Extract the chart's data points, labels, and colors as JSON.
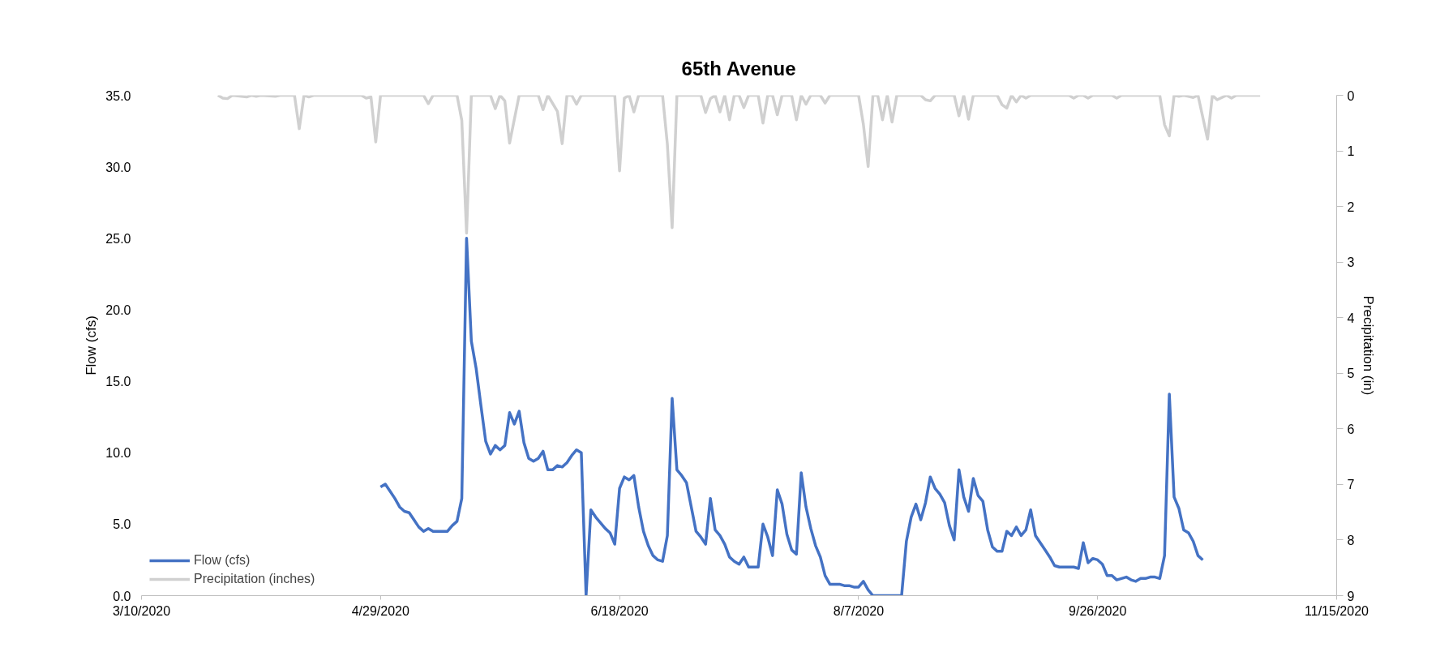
{
  "chart_data": {
    "type": "line",
    "title": "65th Avenue",
    "ylabel": "Flow (cfs)",
    "y2label": "Precipitation (in)",
    "xlim": [
      "2020-03-10",
      "2020-11-15"
    ],
    "xticks": [
      {
        "value": "2020-03-10",
        "label": "3/10/2020"
      },
      {
        "value": "2020-04-29",
        "label": "4/29/2020"
      },
      {
        "value": "2020-06-18",
        "label": "6/18/2020"
      },
      {
        "value": "2020-08-07",
        "label": "8/7/2020"
      },
      {
        "value": "2020-09-26",
        "label": "9/26/2020"
      },
      {
        "value": "2020-11-15",
        "label": "11/15/2020"
      }
    ],
    "ylim": [
      0,
      35
    ],
    "yticks": [
      {
        "value": 0,
        "label": "0.0"
      },
      {
        "value": 5,
        "label": "5.0"
      },
      {
        "value": 10,
        "label": "10.0"
      },
      {
        "value": 15,
        "label": "15.0"
      },
      {
        "value": 20,
        "label": "20.0"
      },
      {
        "value": 25,
        "label": "25.0"
      },
      {
        "value": 30,
        "label": "30.0"
      },
      {
        "value": 35,
        "label": "35.0"
      }
    ],
    "y2lim": [
      9,
      0
    ],
    "y2ticks": [
      0,
      1,
      2,
      3,
      4,
      5,
      6,
      7,
      8,
      9
    ],
    "legend": "bottom left",
    "series": [
      {
        "name": "Flow (cfs)",
        "color": "#4472c4",
        "x": [
          "2020-04-29",
          "2020-04-30",
          "2020-05-01",
          "2020-05-02",
          "2020-05-03",
          "2020-05-04",
          "2020-05-05",
          "2020-05-06",
          "2020-05-07",
          "2020-05-08",
          "2020-05-09",
          "2020-05-10",
          "2020-05-11",
          "2020-05-12",
          "2020-05-13",
          "2020-05-14",
          "2020-05-15",
          "2020-05-16",
          "2020-05-17",
          "2020-05-18",
          "2020-05-19",
          "2020-05-20",
          "2020-05-21",
          "2020-05-22",
          "2020-05-23",
          "2020-05-24",
          "2020-05-25",
          "2020-05-26",
          "2020-05-27",
          "2020-05-28",
          "2020-05-29",
          "2020-05-30",
          "2020-05-31",
          "2020-06-01",
          "2020-06-02",
          "2020-06-03",
          "2020-06-04",
          "2020-06-05",
          "2020-06-06",
          "2020-06-07",
          "2020-06-08",
          "2020-06-09",
          "2020-06-10",
          "2020-06-11",
          "2020-06-12",
          "2020-06-13",
          "2020-06-14",
          "2020-06-15",
          "2020-06-16",
          "2020-06-17",
          "2020-06-18",
          "2020-06-19",
          "2020-06-20",
          "2020-06-21",
          "2020-06-22",
          "2020-06-23",
          "2020-06-24",
          "2020-06-25",
          "2020-06-26",
          "2020-06-27",
          "2020-06-28",
          "2020-06-29",
          "2020-06-30",
          "2020-07-01",
          "2020-07-02",
          "2020-07-03",
          "2020-07-04",
          "2020-07-05",
          "2020-07-06",
          "2020-07-07",
          "2020-07-08",
          "2020-07-09",
          "2020-07-10",
          "2020-07-11",
          "2020-07-12",
          "2020-07-13",
          "2020-07-14",
          "2020-07-15",
          "2020-07-16",
          "2020-07-17",
          "2020-07-18",
          "2020-07-19",
          "2020-07-20",
          "2020-07-21",
          "2020-07-22",
          "2020-07-23",
          "2020-07-24",
          "2020-07-25",
          "2020-07-26",
          "2020-07-27",
          "2020-07-28",
          "2020-07-29",
          "2020-07-30",
          "2020-07-31",
          "2020-08-01",
          "2020-08-02",
          "2020-08-03",
          "2020-08-04",
          "2020-08-05",
          "2020-08-06",
          "2020-08-07",
          "2020-08-08",
          "2020-08-09",
          "2020-08-10",
          "2020-08-11",
          "2020-08-12",
          "2020-08-13",
          "2020-08-14",
          "2020-08-15",
          "2020-08-16",
          "2020-08-17",
          "2020-08-18",
          "2020-08-19",
          "2020-08-20",
          "2020-08-21",
          "2020-08-22",
          "2020-08-23",
          "2020-08-24",
          "2020-08-25",
          "2020-08-26",
          "2020-08-27",
          "2020-08-28",
          "2020-08-29",
          "2020-08-30",
          "2020-08-31",
          "2020-09-01",
          "2020-09-02",
          "2020-09-03",
          "2020-09-04",
          "2020-09-05",
          "2020-09-06",
          "2020-09-07",
          "2020-09-08",
          "2020-09-09",
          "2020-09-10",
          "2020-09-11",
          "2020-09-12",
          "2020-09-13",
          "2020-09-14",
          "2020-09-15",
          "2020-09-16",
          "2020-09-17",
          "2020-09-18",
          "2020-09-19",
          "2020-09-20",
          "2020-09-21",
          "2020-09-22",
          "2020-09-23",
          "2020-09-24",
          "2020-09-25",
          "2020-09-26",
          "2020-09-27",
          "2020-09-28",
          "2020-09-29",
          "2020-09-30",
          "2020-10-01",
          "2020-10-02",
          "2020-10-03",
          "2020-10-04",
          "2020-10-05",
          "2020-10-06",
          "2020-10-07",
          "2020-10-08",
          "2020-10-09",
          "2020-10-10",
          "2020-10-11",
          "2020-10-12",
          "2020-10-13",
          "2020-10-14",
          "2020-10-15",
          "2020-10-16",
          "2020-10-17",
          "2020-10-18"
        ],
        "values": [
          7.6,
          7.8,
          7.3,
          6.8,
          6.2,
          5.9,
          5.8,
          5.3,
          4.8,
          4.5,
          4.7,
          4.5,
          4.5,
          4.5,
          4.5,
          4.9,
          5.2,
          6.8,
          25.0,
          17.8,
          15.9,
          13.3,
          10.8,
          9.9,
          10.5,
          10.2,
          10.5,
          12.8,
          12.0,
          12.9,
          10.7,
          9.6,
          9.4,
          9.6,
          10.1,
          8.8,
          8.8,
          9.1,
          9.0,
          9.3,
          9.8,
          10.2,
          10.0,
          0,
          6.0,
          5.5,
          5.1,
          4.7,
          4.4,
          3.6,
          7.5,
          8.3,
          8.1,
          8.4,
          6.2,
          4.5,
          3.5,
          2.8,
          2.5,
          2.4,
          4.2,
          13.8,
          8.8,
          8.4,
          7.9,
          6.2,
          4.5,
          4.1,
          3.6,
          6.8,
          4.6,
          4.2,
          3.6,
          2.7,
          2.4,
          2.2,
          2.7,
          2.0,
          2.0,
          2.0,
          5.0,
          4.1,
          2.8,
          7.4,
          6.4,
          4.3,
          3.2,
          2.9,
          8.6,
          6.2,
          4.7,
          3.5,
          2.7,
          1.4,
          0.8,
          0.8,
          0.8,
          0.7,
          0.7,
          0.6,
          0.6,
          1.0,
          0.4,
          0,
          0,
          0,
          0,
          0,
          0,
          0,
          3.8,
          5.5,
          6.4,
          5.3,
          6.5,
          8.3,
          7.5,
          7.1,
          6.5,
          4.9,
          3.9,
          8.8,
          6.9,
          5.9,
          8.2,
          7.0,
          6.6,
          4.6,
          3.4,
          3.1,
          3.1,
          4.5,
          4.2,
          4.8,
          4.2,
          4.6,
          6.0,
          4.2,
          3.7,
          3.2,
          2.7,
          2.1,
          2.0,
          2.0,
          2.0,
          2.0,
          1.9,
          3.7,
          2.3,
          2.6,
          2.5,
          2.2,
          1.4,
          1.4,
          1.1,
          1.2,
          1.3,
          1.1,
          1.0,
          1.2,
          1.2,
          1.3,
          1.3,
          1.2,
          2.8,
          14.1,
          6.9,
          6.1,
          4.6,
          4.4,
          3.8,
          2.8,
          2.5
        ]
      },
      {
        "name": "Precipitation (inches)",
        "color": "#d0d0d0",
        "axis": "y2",
        "x": [
          "2020-03-26",
          "2020-03-27",
          "2020-03-28",
          "2020-03-29",
          "2020-04-01",
          "2020-04-02",
          "2020-04-03",
          "2020-04-04",
          "2020-04-07",
          "2020-04-08",
          "2020-04-11",
          "2020-04-12",
          "2020-04-13",
          "2020-04-14",
          "2020-04-15",
          "2020-04-25",
          "2020-04-26",
          "2020-04-27",
          "2020-04-28",
          "2020-04-29",
          "2020-05-08",
          "2020-05-09",
          "2020-05-10",
          "2020-05-15",
          "2020-05-16",
          "2020-05-17",
          "2020-05-18",
          "2020-05-22",
          "2020-05-23",
          "2020-05-24",
          "2020-05-25",
          "2020-05-26",
          "2020-05-28",
          "2020-06-01",
          "2020-06-02",
          "2020-06-03",
          "2020-06-05",
          "2020-06-06",
          "2020-06-07",
          "2020-06-08",
          "2020-06-09",
          "2020-06-10",
          "2020-06-17",
          "2020-06-18",
          "2020-06-19",
          "2020-06-20",
          "2020-06-21",
          "2020-06-22",
          "2020-06-27",
          "2020-06-28",
          "2020-06-29",
          "2020-06-30",
          "2020-07-05",
          "2020-07-06",
          "2020-07-07",
          "2020-07-08",
          "2020-07-09",
          "2020-07-10",
          "2020-07-11",
          "2020-07-12",
          "2020-07-13",
          "2020-07-14",
          "2020-07-15",
          "2020-07-17",
          "2020-07-18",
          "2020-07-19",
          "2020-07-20",
          "2020-07-21",
          "2020-07-22",
          "2020-07-24",
          "2020-07-25",
          "2020-07-26",
          "2020-07-27",
          "2020-07-28",
          "2020-07-30",
          "2020-07-31",
          "2020-08-01",
          "2020-08-07",
          "2020-08-08",
          "2020-08-09",
          "2020-08-10",
          "2020-08-11",
          "2020-08-12",
          "2020-08-13",
          "2020-08-14",
          "2020-08-15",
          "2020-08-20",
          "2020-08-21",
          "2020-08-22",
          "2020-08-23",
          "2020-08-27",
          "2020-08-28",
          "2020-08-29",
          "2020-08-30",
          "2020-08-31",
          "2020-09-05",
          "2020-09-06",
          "2020-09-07",
          "2020-09-08",
          "2020-09-09",
          "2020-09-10",
          "2020-09-11",
          "2020-09-12",
          "2020-09-20",
          "2020-09-21",
          "2020-09-22",
          "2020-09-23",
          "2020-09-24",
          "2020-09-25",
          "2020-09-29",
          "2020-09-30",
          "2020-10-01",
          "2020-10-09",
          "2020-10-10",
          "2020-10-11",
          "2020-10-12",
          "2020-10-13",
          "2020-10-14",
          "2020-10-15",
          "2020-10-16",
          "2020-10-17",
          "2020-10-19",
          "2020-10-20",
          "2020-10-21",
          "2020-10-23",
          "2020-10-24",
          "2020-10-25",
          "2020-10-30"
        ],
        "values": [
          0,
          0.05,
          0.06,
          0,
          0.03,
          0,
          0.02,
          0,
          0.02,
          0,
          0,
          0.6,
          0,
          0.03,
          0,
          0,
          0.05,
          0.03,
          0.84,
          0,
          0,
          0.15,
          0,
          0,
          0.45,
          2.48,
          0,
          0,
          0.24,
          0,
          0.1,
          0.86,
          0,
          0,
          0.26,
          0,
          0.29,
          0.87,
          0,
          0,
          0.16,
          0,
          0,
          1.36,
          0.05,
          0,
          0.3,
          0,
          0,
          0.88,
          2.38,
          0,
          0,
          0.31,
          0.06,
          0,
          0.3,
          0,
          0.44,
          0,
          0,
          0.22,
          0,
          0,
          0.5,
          0,
          0,
          0.35,
          0,
          0,
          0.44,
          0,
          0.16,
          0,
          0,
          0.14,
          0,
          0,
          0.52,
          1.28,
          0,
          0,
          0.44,
          0,
          0.48,
          0,
          0,
          0.08,
          0.1,
          0,
          0,
          0.37,
          0,
          0.43,
          0,
          0,
          0.17,
          0.23,
          0,
          0.12,
          0,
          0.05,
          0,
          0,
          0.05,
          0,
          0,
          0.05,
          0,
          0,
          0.05,
          0,
          0,
          0.53,
          0.73,
          0,
          0.02,
          0,
          0.02,
          0.04,
          0,
          0.79,
          0,
          0.08,
          0,
          0.05,
          0,
          0
        ]
      }
    ]
  }
}
